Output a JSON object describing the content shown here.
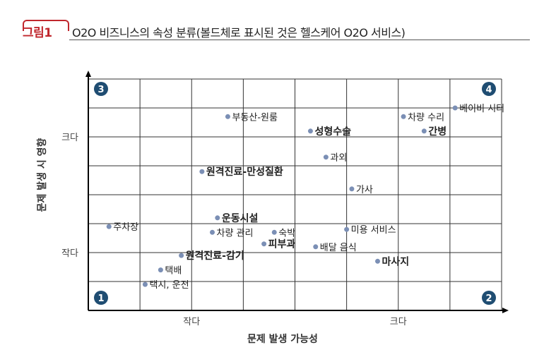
{
  "header": {
    "tag": "그림1",
    "title": "O2O 비즈니스의 속성 분류(볼드체로 표시된 것은 헬스케어 O2O 서비스)"
  },
  "chart_data": {
    "type": "scatter",
    "xlabel": "문제 발생 가능성",
    "ylabel": "문제 발생 시 영향",
    "x_ticks": [
      {
        "value": 2,
        "label": "작다"
      },
      {
        "value": 6,
        "label": "크다"
      }
    ],
    "y_ticks": [
      {
        "value": 2,
        "label": "작다"
      },
      {
        "value": 6,
        "label": "크다"
      }
    ],
    "xlim": [
      0,
      8
    ],
    "ylim": [
      0,
      8
    ],
    "grid": true,
    "quadrants": [
      "1",
      "2",
      "3",
      "4"
    ],
    "points": [
      {
        "label": "부동산-원룸",
        "x": 2.7,
        "y": 6.7,
        "bold": false
      },
      {
        "label": "차량 수리",
        "x": 6.1,
        "y": 6.7,
        "bold": false
      },
      {
        "label": "베이비 시터",
        "x": 7.1,
        "y": 7.0,
        "bold": false
      },
      {
        "label": "성형수술",
        "x": 4.3,
        "y": 6.2,
        "bold": true
      },
      {
        "label": "간병",
        "x": 6.5,
        "y": 6.2,
        "bold": true
      },
      {
        "label": "과외",
        "x": 4.6,
        "y": 5.3,
        "bold": false
      },
      {
        "label": "원격진료-만성질환",
        "x": 2.2,
        "y": 4.8,
        "bold": true
      },
      {
        "label": "가사",
        "x": 5.1,
        "y": 4.2,
        "bold": false
      },
      {
        "label": "운동시설",
        "x": 2.5,
        "y": 3.2,
        "bold": true
      },
      {
        "label": "주차장",
        "x": 0.4,
        "y": 2.9,
        "bold": false
      },
      {
        "label": "차량 관리",
        "x": 2.4,
        "y": 2.7,
        "bold": false
      },
      {
        "label": "숙박",
        "x": 3.6,
        "y": 2.7,
        "bold": false
      },
      {
        "label": "미용 서비스",
        "x": 5.0,
        "y": 2.8,
        "bold": false
      },
      {
        "label": "피부과",
        "x": 3.4,
        "y": 2.3,
        "bold": true
      },
      {
        "label": "배달 음식",
        "x": 4.4,
        "y": 2.2,
        "bold": false
      },
      {
        "label": "원격진료-감기",
        "x": 1.8,
        "y": 1.9,
        "bold": true
      },
      {
        "label": "마사지",
        "x": 5.6,
        "y": 1.7,
        "bold": true
      },
      {
        "label": "택배",
        "x": 1.4,
        "y": 1.4,
        "bold": false
      },
      {
        "label": "택시, 운전",
        "x": 1.1,
        "y": 0.9,
        "bold": false
      }
    ],
    "colors": {
      "point": "#7b8fb5",
      "quadrant_badge": "#1f4d72",
      "grid": "#333333",
      "accent": "#c0272d"
    }
  }
}
